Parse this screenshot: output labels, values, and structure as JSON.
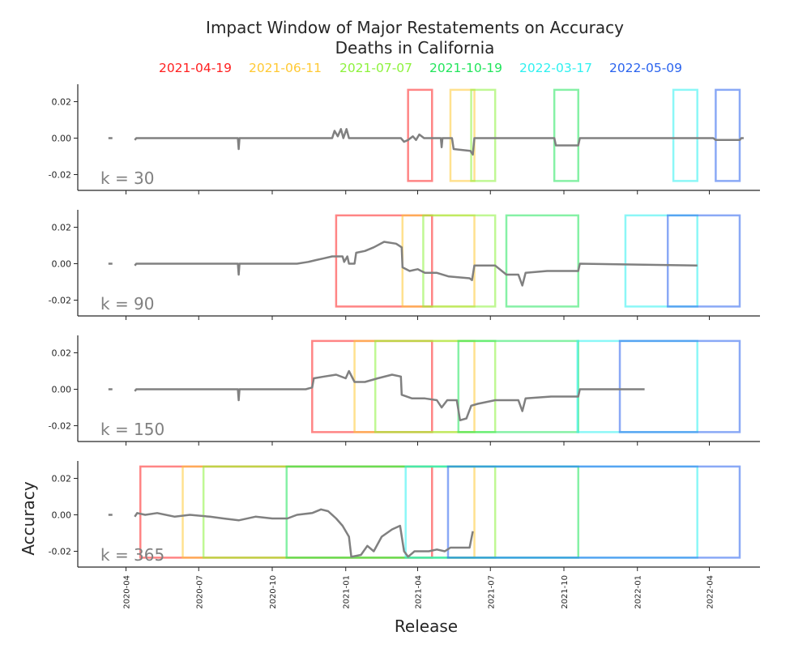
{
  "chart_data": {
    "type": "line",
    "title": "Impact Window of Major Restatements on Accuracy",
    "subtitle": "Deaths in California",
    "xlabel": "Release",
    "ylabel": "Accuracy",
    "x_tick_labels": [
      "2020-04",
      "2020-07",
      "2020-10",
      "2021-01",
      "2021-04",
      "2021-07",
      "2021-10",
      "2022-01",
      "2022-04"
    ],
    "y_tick_labels": [
      "0.02",
      "0.00",
      "-0.02"
    ],
    "ylim": [
      -0.029,
      0.029
    ],
    "legend_position": "top",
    "restatements": [
      {
        "name": "2021-04-19",
        "color": "#ff2020"
      },
      {
        "name": "2021-06-11",
        "color": "#ffc933"
      },
      {
        "name": "2021-07-07",
        "color": "#8df23c"
      },
      {
        "name": "2021-10-19",
        "color": "#22e55c"
      },
      {
        "name": "2022-03-17",
        "color": "#2ef0f0"
      },
      {
        "name": "2022-05-09",
        "color": "#2a63ee"
      }
    ],
    "panels": [
      {
        "k_label": "k = 30",
        "windows": [
          [
            "2021-03-20",
            "2021-04-19"
          ],
          [
            "2021-05-12",
            "2021-06-11"
          ],
          [
            "2021-06-07",
            "2021-07-07"
          ],
          [
            "2021-09-19",
            "2021-10-19"
          ],
          [
            "2022-02-15",
            "2022-03-17"
          ],
          [
            "2022-04-09",
            "2022-05-09"
          ]
        ],
        "series": [
          [
            "2020-03-10",
            0.0
          ],
          [
            "2020-03-15",
            0.0
          ],
          [
            "2020-04-12",
            -0.001
          ],
          [
            "2020-04-14",
            0.0
          ],
          [
            "2020-08-19",
            0.0
          ],
          [
            "2020-08-20",
            -0.006
          ],
          [
            "2020-08-21",
            0.0
          ],
          [
            "2020-12-15",
            0.0
          ],
          [
            "2020-12-18",
            0.004
          ],
          [
            "2020-12-22",
            0.001
          ],
          [
            "2020-12-26",
            0.005
          ],
          [
            "2020-12-29",
            0.0
          ],
          [
            "2021-01-02",
            0.005
          ],
          [
            "2021-01-05",
            0.0
          ],
          [
            "2021-03-11",
            0.0
          ],
          [
            "2021-03-15",
            -0.002
          ],
          [
            "2021-03-20",
            -0.001
          ],
          [
            "2021-03-26",
            0.001
          ],
          [
            "2021-03-30",
            -0.001
          ],
          [
            "2021-04-03",
            0.002
          ],
          [
            "2021-04-09",
            0.0
          ],
          [
            "2021-04-30",
            0.0
          ],
          [
            "2021-05-01",
            -0.005
          ],
          [
            "2021-05-02",
            0.0
          ],
          [
            "2021-05-14",
            0.0
          ],
          [
            "2021-05-16",
            -0.006
          ],
          [
            "2021-06-06",
            -0.007
          ],
          [
            "2021-06-09",
            -0.009
          ],
          [
            "2021-06-11",
            0.0
          ],
          [
            "2021-09-19",
            0.0
          ],
          [
            "2021-09-21",
            -0.004
          ],
          [
            "2021-10-19",
            -0.004
          ],
          [
            "2021-10-21",
            0.0
          ],
          [
            "2022-04-06",
            0.0
          ],
          [
            "2022-04-09",
            -0.001
          ],
          [
            "2022-05-09",
            -0.001
          ],
          [
            "2022-05-11",
            0.0
          ],
          [
            "2022-05-14",
            0.0
          ]
        ]
      },
      {
        "k_label": "k = 90",
        "windows": [
          [
            "2020-12-20",
            "2021-04-19"
          ],
          [
            "2021-03-13",
            "2021-06-11"
          ],
          [
            "2021-04-08",
            "2021-07-07"
          ],
          [
            "2021-07-21",
            "2021-10-19"
          ],
          [
            "2021-12-17",
            "2022-03-17"
          ],
          [
            "2022-02-08",
            "2022-05-09"
          ]
        ],
        "series": [
          [
            "2020-03-10",
            0.0
          ],
          [
            "2020-03-15",
            0.0
          ],
          [
            "2020-04-12",
            -0.001
          ],
          [
            "2020-04-14",
            0.0
          ],
          [
            "2020-08-19",
            0.0
          ],
          [
            "2020-08-20",
            -0.006
          ],
          [
            "2020-08-21",
            0.0
          ],
          [
            "2020-11-01",
            0.0
          ],
          [
            "2020-11-15",
            0.001
          ],
          [
            "2020-11-25",
            0.002
          ],
          [
            "2020-12-05",
            0.003
          ],
          [
            "2020-12-15",
            0.004
          ],
          [
            "2020-12-28",
            0.004
          ],
          [
            "2020-12-30",
            0.001
          ],
          [
            "2021-01-03",
            0.004
          ],
          [
            "2021-01-05",
            0.0
          ],
          [
            "2021-01-12",
            0.0
          ],
          [
            "2021-01-14",
            0.006
          ],
          [
            "2021-01-25",
            0.007
          ],
          [
            "2021-02-05",
            0.009
          ],
          [
            "2021-02-18",
            0.012
          ],
          [
            "2021-03-05",
            0.011
          ],
          [
            "2021-03-12",
            0.009
          ],
          [
            "2021-03-13",
            -0.002
          ],
          [
            "2021-03-22",
            -0.004
          ],
          [
            "2021-04-01",
            -0.003
          ],
          [
            "2021-04-10",
            -0.005
          ],
          [
            "2021-04-25",
            -0.005
          ],
          [
            "2021-05-10",
            -0.007
          ],
          [
            "2021-06-05",
            -0.008
          ],
          [
            "2021-06-08",
            -0.009
          ],
          [
            "2021-06-11",
            -0.001
          ],
          [
            "2021-07-07",
            -0.001
          ],
          [
            "2021-07-21",
            -0.006
          ],
          [
            "2021-08-05",
            -0.006
          ],
          [
            "2021-08-10",
            -0.012
          ],
          [
            "2021-08-14",
            -0.005
          ],
          [
            "2021-09-10",
            -0.004
          ],
          [
            "2021-10-19",
            -0.004
          ],
          [
            "2021-10-21",
            0.0
          ],
          [
            "2022-03-17",
            -0.001
          ]
        ]
      },
      {
        "k_label": "k = 150",
        "windows": [
          [
            "2020-11-20",
            "2021-04-19"
          ],
          [
            "2021-01-12",
            "2021-06-11"
          ],
          [
            "2021-02-07",
            "2021-07-07"
          ],
          [
            "2021-05-22",
            "2021-10-19"
          ],
          [
            "2021-10-18",
            "2022-03-17"
          ],
          [
            "2021-12-10",
            "2022-05-09"
          ]
        ],
        "series": [
          [
            "2020-03-10",
            0.0
          ],
          [
            "2020-03-15",
            0.0
          ],
          [
            "2020-04-12",
            -0.001
          ],
          [
            "2020-04-14",
            0.0
          ],
          [
            "2020-08-19",
            0.0
          ],
          [
            "2020-08-20",
            -0.006
          ],
          [
            "2020-08-21",
            0.0
          ],
          [
            "2020-11-12",
            0.0
          ],
          [
            "2020-11-20",
            0.001
          ],
          [
            "2020-11-22",
            0.006
          ],
          [
            "2020-12-05",
            0.007
          ],
          [
            "2020-12-20",
            0.008
          ],
          [
            "2021-01-01",
            0.006
          ],
          [
            "2021-01-05",
            0.01
          ],
          [
            "2021-01-12",
            0.004
          ],
          [
            "2021-01-25",
            0.004
          ],
          [
            "2021-02-10",
            0.006
          ],
          [
            "2021-02-28",
            0.008
          ],
          [
            "2021-03-11",
            0.007
          ],
          [
            "2021-03-12",
            -0.003
          ],
          [
            "2021-03-25",
            -0.005
          ],
          [
            "2021-04-10",
            -0.005
          ],
          [
            "2021-04-25",
            -0.006
          ],
          [
            "2021-05-01",
            -0.01
          ],
          [
            "2021-05-08",
            -0.006
          ],
          [
            "2021-05-20",
            -0.006
          ],
          [
            "2021-05-24",
            -0.017
          ],
          [
            "2021-06-01",
            -0.016
          ],
          [
            "2021-06-07",
            -0.009
          ],
          [
            "2021-06-15",
            -0.008
          ],
          [
            "2021-07-07",
            -0.006
          ],
          [
            "2021-08-05",
            -0.006
          ],
          [
            "2021-08-10",
            -0.012
          ],
          [
            "2021-08-14",
            -0.005
          ],
          [
            "2021-09-15",
            -0.004
          ],
          [
            "2021-10-19",
            -0.004
          ],
          [
            "2021-10-21",
            0.0
          ],
          [
            "2022-01-10",
            0.0
          ]
        ]
      },
      {
        "k_label": "k = 365",
        "windows": [
          [
            "2020-04-19",
            "2021-04-19"
          ],
          [
            "2020-06-11",
            "2021-06-11"
          ],
          [
            "2020-07-07",
            "2021-07-07"
          ],
          [
            "2020-10-19",
            "2021-10-19"
          ],
          [
            "2021-03-17",
            "2022-03-17"
          ],
          [
            "2021-05-09",
            "2022-05-09"
          ]
        ],
        "series": [
          [
            "2020-03-10",
            0.0
          ],
          [
            "2020-03-15",
            0.0
          ],
          [
            "2020-04-12",
            -0.001
          ],
          [
            "2020-04-15",
            0.001
          ],
          [
            "2020-04-25",
            0.0
          ],
          [
            "2020-05-10",
            0.001
          ],
          [
            "2020-06-01",
            -0.001
          ],
          [
            "2020-06-20",
            0.0
          ],
          [
            "2020-07-15",
            -0.001
          ],
          [
            "2020-08-01",
            -0.002
          ],
          [
            "2020-08-20",
            -0.003
          ],
          [
            "2020-09-10",
            -0.001
          ],
          [
            "2020-10-01",
            -0.002
          ],
          [
            "2020-10-20",
            -0.002
          ],
          [
            "2020-11-01",
            0.0
          ],
          [
            "2020-11-20",
            0.001
          ],
          [
            "2020-12-01",
            0.003
          ],
          [
            "2020-12-10",
            0.002
          ],
          [
            "2020-12-20",
            -0.002
          ],
          [
            "2020-12-28",
            -0.006
          ],
          [
            "2021-01-05",
            -0.012
          ],
          [
            "2021-01-08",
            -0.023
          ],
          [
            "2021-01-20",
            -0.022
          ],
          [
            "2021-01-28",
            -0.017
          ],
          [
            "2021-02-05",
            -0.02
          ],
          [
            "2021-02-15",
            -0.012
          ],
          [
            "2021-02-28",
            -0.008
          ],
          [
            "2021-03-10",
            -0.006
          ],
          [
            "2021-03-15",
            -0.02
          ],
          [
            "2021-03-20",
            -0.023
          ],
          [
            "2021-03-28",
            -0.02
          ],
          [
            "2021-04-15",
            -0.02
          ],
          [
            "2021-04-25",
            -0.019
          ],
          [
            "2021-05-05",
            -0.02
          ],
          [
            "2021-05-12",
            -0.018
          ],
          [
            "2021-06-05",
            -0.018
          ],
          [
            "2021-06-09",
            -0.009
          ]
        ]
      }
    ]
  }
}
